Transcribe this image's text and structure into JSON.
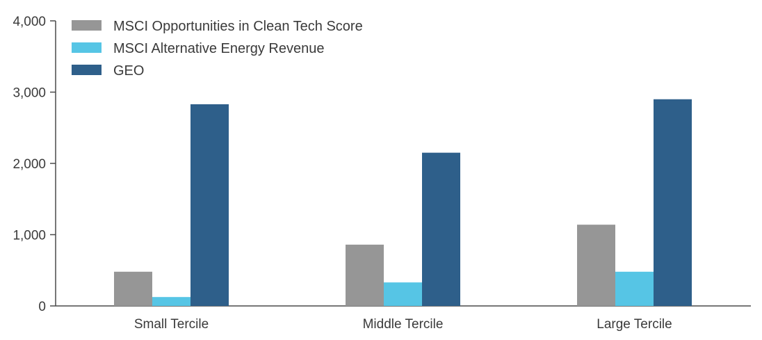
{
  "chart_data": {
    "type": "bar",
    "categories": [
      "Small Tercile",
      "Middle Tercile",
      "Large Tercile"
    ],
    "series": [
      {
        "name": "MSCI Opportunities in Clean Tech Score",
        "values": [
          480,
          860,
          1140
        ],
        "color": "#969696"
      },
      {
        "name": "MSCI Alternative Energy Revenue",
        "values": [
          125,
          330,
          480
        ],
        "color": "#56c5e5"
      },
      {
        "name": "GEO",
        "values": [
          2830,
          2150,
          2900
        ],
        "color": "#2e5f8a"
      }
    ],
    "title": "",
    "xlabel": "",
    "ylabel": "",
    "ylim": [
      0,
      4000
    ],
    "yticks": [
      0,
      1000,
      2000,
      3000,
      4000
    ],
    "ytick_labels": [
      "0",
      "1,000",
      "2,000",
      "3,000",
      "4,000"
    ],
    "grid": false,
    "legend_position": "top-left"
  }
}
